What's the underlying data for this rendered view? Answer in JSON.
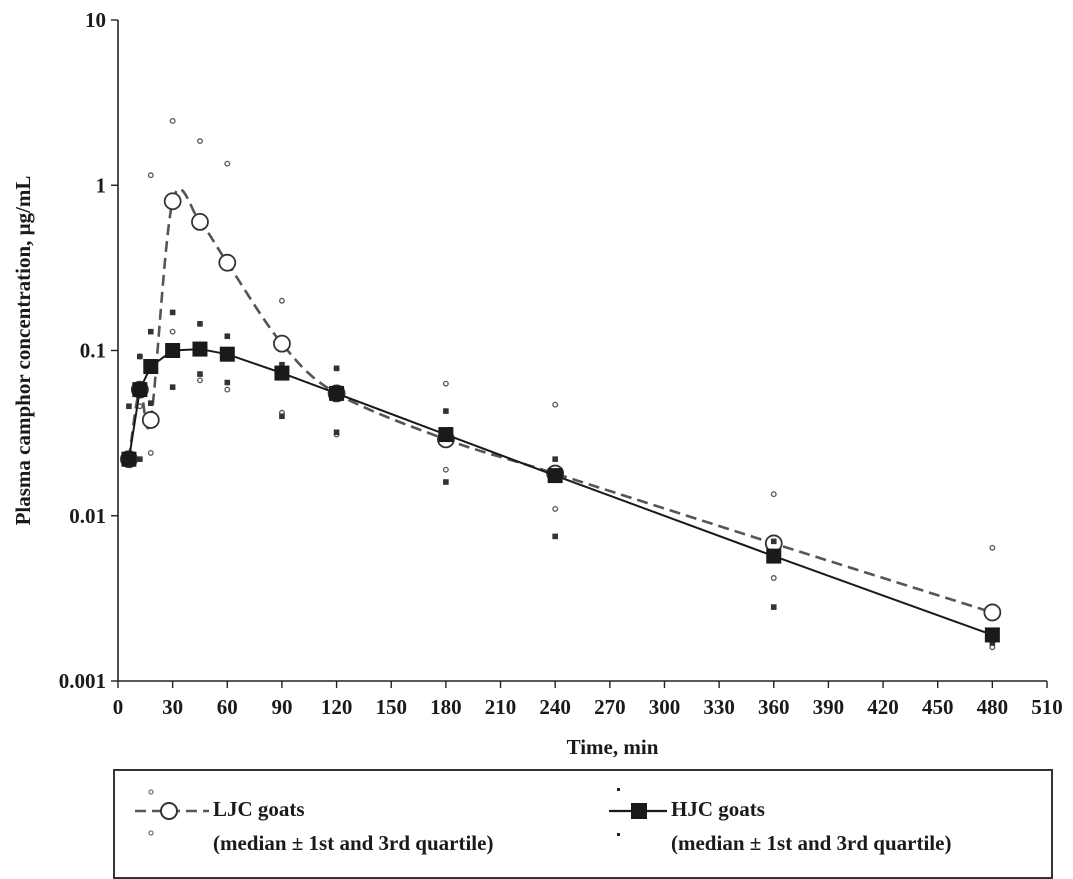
{
  "chart_data": {
    "type": "line",
    "yscale": "log",
    "xlabel": "Time, min",
    "ylabel": "Plasma camphor concentration, μg/mL",
    "xlim": [
      0,
      510
    ],
    "ylim": [
      0.001,
      10
    ],
    "x_ticks": [
      "0",
      "30",
      "60",
      "90",
      "120",
      "150",
      "180",
      "210",
      "240",
      "270",
      "300",
      "330",
      "360",
      "390",
      "420",
      "450",
      "480",
      "510"
    ],
    "y_ticks": [
      "0.001",
      "0.01",
      "0.1",
      "1",
      "10"
    ],
    "grid": false,
    "series": [
      {
        "name": "LJC goats",
        "description": "(median ± 1st and 3rd quartile)",
        "color": "#555555",
        "line_style": "dashed",
        "marker": "open-circle",
        "x": [
          6,
          12,
          18,
          30,
          45,
          60,
          90,
          120,
          180,
          240,
          360,
          480
        ],
        "median": [
          0.022,
          0.058,
          0.038,
          0.8,
          0.6,
          0.34,
          0.11,
          0.055,
          0.029,
          0.018,
          0.0068,
          0.0026
        ],
        "q1": [
          0.022,
          0.046,
          0.024,
          0.13,
          0.066,
          0.058,
          0.042,
          0.031,
          0.019,
          0.011,
          0.0042,
          0.0016
        ],
        "q3": [
          0.022,
          0.092,
          1.15,
          2.45,
          1.85,
          1.35,
          0.2,
          0.078,
          0.063,
          0.047,
          0.0135,
          0.0064
        ]
      },
      {
        "name": "HJC goats",
        "description": "(median ± 1st and 3rd quartile)",
        "color": "#1a1a1a",
        "line_style": "solid",
        "marker": "filled-square",
        "x": [
          6,
          12,
          18,
          30,
          45,
          60,
          90,
          120,
          180,
          240,
          360,
          480
        ],
        "median": [
          0.022,
          0.058,
          0.08,
          0.1,
          0.102,
          0.095,
          0.073,
          0.055,
          0.031,
          0.0175,
          0.0057,
          0.0019
        ],
        "q1": [
          0.022,
          0.022,
          0.048,
          0.06,
          0.072,
          0.064,
          0.04,
          0.032,
          0.016,
          0.0075,
          0.0028,
          0.0017
        ],
        "q3": [
          0.046,
          0.092,
          0.13,
          0.17,
          0.145,
          0.122,
          0.082,
          0.078,
          0.043,
          0.022,
          0.007,
          0.0019
        ]
      }
    ],
    "legend": {
      "position": "bottom",
      "entries": [
        {
          "line1": "LJC goats",
          "line2": "(median ± 1st and 3rd quartile)"
        },
        {
          "line1": "HJC goats",
          "line2": "(median ± 1st and 3rd quartile)"
        }
      ]
    }
  }
}
